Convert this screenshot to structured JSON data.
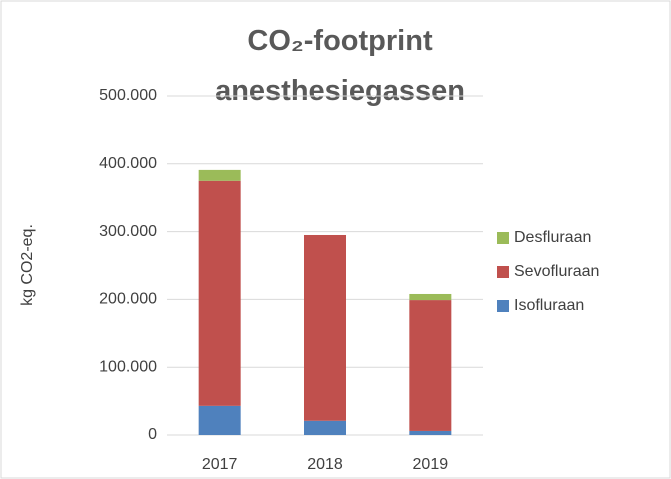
{
  "chart_data": {
    "type": "stacked_bar",
    "title": "CO₂-footprint anesthesiegassen",
    "ylabel": "kg CO2-eq.",
    "categories": [
      "2017",
      "2018",
      "2019"
    ],
    "series": [
      {
        "name": "Isofluraan",
        "color": "#4f81bd",
        "values": [
          43000,
          21000,
          6000
        ]
      },
      {
        "name": "Sevofluraan",
        "color": "#c0504d",
        "values": [
          332000,
          274000,
          193000
        ]
      },
      {
        "name": "Desfluraan",
        "color": "#9bbb59",
        "values": [
          16000,
          0,
          9000
        ]
      }
    ],
    "ylim": [
      0,
      500000
    ],
    "yticks": [
      0,
      {
        "value": 100000,
        "label": "100.000"
      },
      {
        "value": 200000,
        "label": "200.000"
      },
      {
        "value": 300000,
        "label": "300.000"
      },
      {
        "value": 400000,
        "label": "400.000"
      },
      {
        "value": 500000,
        "label": "500.000"
      }
    ],
    "grid": true,
    "legend": "right"
  }
}
